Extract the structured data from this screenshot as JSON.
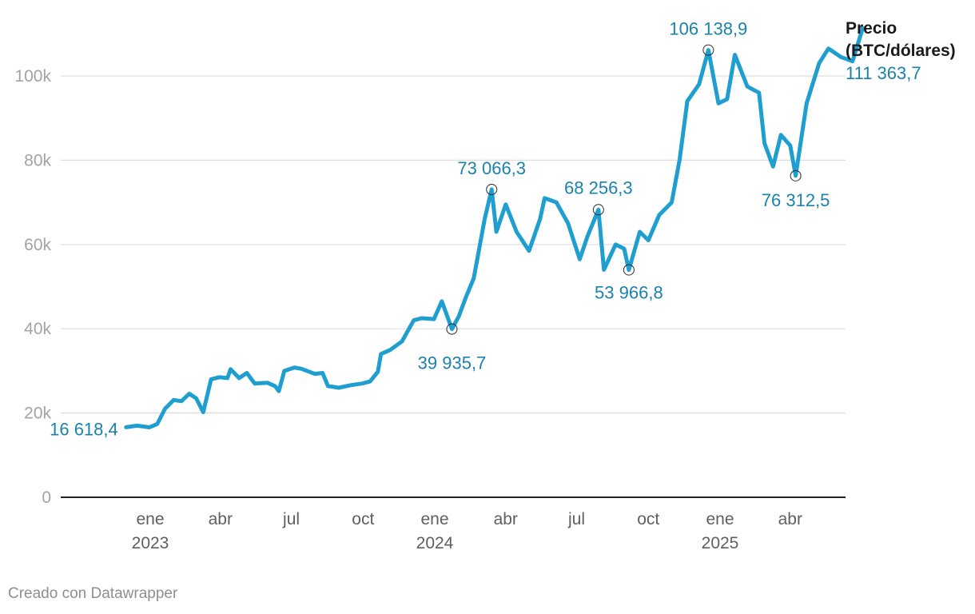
{
  "chart_data": {
    "type": "line",
    "series_name": "Precio (BTC/dólares)",
    "legend": {
      "title_line1": "Precio",
      "title_line2": "(BTC/dólares)",
      "last_value": "111 363,7"
    },
    "ylim": [
      0,
      115000
    ],
    "xlim": [
      "2022-10-01",
      "2025-07-05"
    ],
    "y_ticks": [
      {
        "value": 0,
        "label": "0"
      },
      {
        "value": 20000,
        "label": "20k"
      },
      {
        "value": 40000,
        "label": "40k"
      },
      {
        "value": 60000,
        "label": "60k"
      },
      {
        "value": 80000,
        "label": "80k"
      },
      {
        "value": 100000,
        "label": "100k"
      }
    ],
    "x_ticks": [
      {
        "date": "2023-01-01",
        "label": "ene",
        "year": "2023"
      },
      {
        "date": "2023-04-01",
        "label": "abr",
        "year": ""
      },
      {
        "date": "2023-07-01",
        "label": "jul",
        "year": ""
      },
      {
        "date": "2023-10-01",
        "label": "oct",
        "year": ""
      },
      {
        "date": "2024-01-01",
        "label": "ene",
        "year": "2024"
      },
      {
        "date": "2024-04-01",
        "label": "abr",
        "year": ""
      },
      {
        "date": "2024-07-01",
        "label": "jul",
        "year": ""
      },
      {
        "date": "2024-10-01",
        "label": "oct",
        "year": ""
      },
      {
        "date": "2025-01-01",
        "label": "ene",
        "year": "2025"
      },
      {
        "date": "2025-04-01",
        "label": "abr",
        "year": ""
      }
    ],
    "points": [
      [
        "2022-12-01",
        16618
      ],
      [
        "2022-12-15",
        17000
      ],
      [
        "2022-12-31",
        16600
      ],
      [
        "2023-01-10",
        17400
      ],
      [
        "2023-01-20",
        21000
      ],
      [
        "2023-01-31",
        23100
      ],
      [
        "2023-02-10",
        22800
      ],
      [
        "2023-02-20",
        24600
      ],
      [
        "2023-03-01",
        23500
      ],
      [
        "2023-03-10",
        20200
      ],
      [
        "2023-03-20",
        28000
      ],
      [
        "2023-03-31",
        28500
      ],
      [
        "2023-04-10",
        28300
      ],
      [
        "2023-04-14",
        30400
      ],
      [
        "2023-04-25",
        28300
      ],
      [
        "2023-05-05",
        29500
      ],
      [
        "2023-05-15",
        27000
      ],
      [
        "2023-05-31",
        27200
      ],
      [
        "2023-06-10",
        26400
      ],
      [
        "2023-06-15",
        25200
      ],
      [
        "2023-06-22",
        30000
      ],
      [
        "2023-07-05",
        30800
      ],
      [
        "2023-07-14",
        30500
      ],
      [
        "2023-07-31",
        29300
      ],
      [
        "2023-08-10",
        29500
      ],
      [
        "2023-08-17",
        26400
      ],
      [
        "2023-08-31",
        26000
      ],
      [
        "2023-09-15",
        26600
      ],
      [
        "2023-09-30",
        27000
      ],
      [
        "2023-10-10",
        27500
      ],
      [
        "2023-10-20",
        29800
      ],
      [
        "2023-10-24",
        34000
      ],
      [
        "2023-11-05",
        35000
      ],
      [
        "2023-11-20",
        37000
      ],
      [
        "2023-12-05",
        42000
      ],
      [
        "2023-12-15",
        42500
      ],
      [
        "2023-12-31",
        42300
      ],
      [
        "2024-01-10",
        46500
      ],
      [
        "2024-01-23",
        39936
      ],
      [
        "2024-02-01",
        43000
      ],
      [
        "2024-02-10",
        47500
      ],
      [
        "2024-02-20",
        52000
      ],
      [
        "2024-02-28",
        60000
      ],
      [
        "2024-03-05",
        66000
      ],
      [
        "2024-03-14",
        73066
      ],
      [
        "2024-03-20",
        63000
      ],
      [
        "2024-04-01",
        69500
      ],
      [
        "2024-04-15",
        63000
      ],
      [
        "2024-05-01",
        58500
      ],
      [
        "2024-05-15",
        66000
      ],
      [
        "2024-05-21",
        71000
      ],
      [
        "2024-06-05",
        70000
      ],
      [
        "2024-06-20",
        65000
      ],
      [
        "2024-07-05",
        56500
      ],
      [
        "2024-07-15",
        62000
      ],
      [
        "2024-07-29",
        68256
      ],
      [
        "2024-08-05",
        54000
      ],
      [
        "2024-08-20",
        60000
      ],
      [
        "2024-08-31",
        59000
      ],
      [
        "2024-09-06",
        53967
      ],
      [
        "2024-09-20",
        63000
      ],
      [
        "2024-10-01",
        61000
      ],
      [
        "2024-10-15",
        67000
      ],
      [
        "2024-10-31",
        70000
      ],
      [
        "2024-11-10",
        80000
      ],
      [
        "2024-11-20",
        94000
      ],
      [
        "2024-12-05",
        98000
      ],
      [
        "2024-12-17",
        106139
      ],
      [
        "2024-12-30",
        93500
      ],
      [
        "2025-01-10",
        94500
      ],
      [
        "2025-01-20",
        105000
      ],
      [
        "2025-02-05",
        97500
      ],
      [
        "2025-02-20",
        96000
      ],
      [
        "2025-02-27",
        84000
      ],
      [
        "2025-03-10",
        78500
      ],
      [
        "2025-03-20",
        86000
      ],
      [
        "2025-04-01",
        83500
      ],
      [
        "2025-04-08",
        76312
      ],
      [
        "2025-04-22",
        93500
      ],
      [
        "2025-05-08",
        103000
      ],
      [
        "2025-05-20",
        106500
      ],
      [
        "2025-06-05",
        104500
      ],
      [
        "2025-06-20",
        103500
      ],
      [
        "2025-07-03",
        111364
      ]
    ],
    "annotations": [
      {
        "date": "2022-12-01",
        "value": 16618,
        "label": "16 618,4",
        "marker": false
      },
      {
        "date": "2024-01-23",
        "value": 39936,
        "label": "39 935,7",
        "marker": true
      },
      {
        "date": "2024-03-14",
        "value": 73066,
        "label": "73 066,3",
        "marker": true
      },
      {
        "date": "2024-07-29",
        "value": 68256,
        "label": "68 256,3",
        "marker": true
      },
      {
        "date": "2024-09-06",
        "value": 53967,
        "label": "53 966,8",
        "marker": true
      },
      {
        "date": "2024-12-17",
        "value": 106139,
        "label": "106 138,9",
        "marker": true
      },
      {
        "date": "2025-04-08",
        "value": 76312,
        "label": "76 312,5",
        "marker": true
      }
    ],
    "colors": {
      "line": "#1f9fd0",
      "label": "#1a82ad",
      "grid": "#dddddd",
      "axis": "#222222"
    }
  },
  "footer": {
    "text": "Creado con Datawrapper"
  }
}
